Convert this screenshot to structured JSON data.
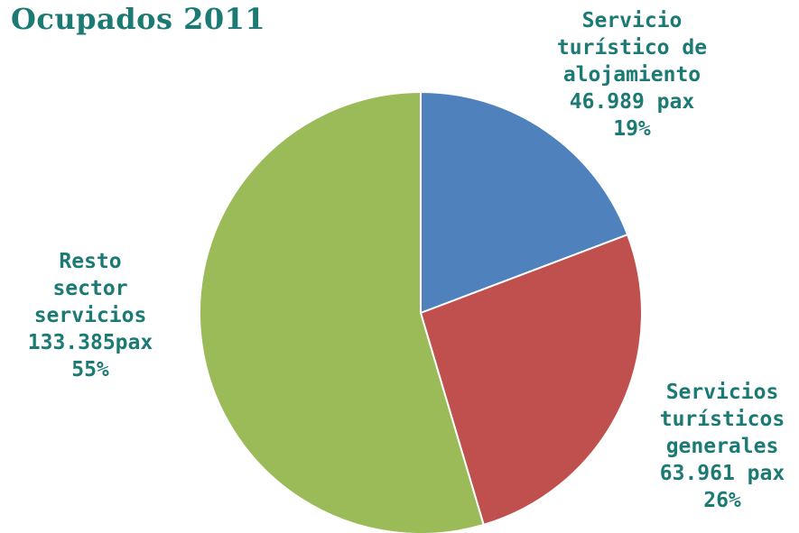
{
  "chart_data": {
    "type": "pie",
    "title": "Ocupados 2011",
    "slices": [
      {
        "label_lines": [
          "Servicio",
          "turístico de",
          "alojamiento"
        ],
        "value_label": "46.989 pax",
        "value": 46989,
        "percent_label": "19%",
        "color": "#4f81bd"
      },
      {
        "label_lines": [
          "Servicios",
          "turísticos",
          "generales"
        ],
        "value_label": "63.961 pax",
        "value": 63961,
        "percent_label": "26%",
        "color": "#c0504d"
      },
      {
        "label_lines": [
          "Resto",
          "sector",
          "servicios"
        ],
        "value_label": "133.385pax",
        "value": 133385,
        "percent_label": "55%",
        "color": "#9bbb59"
      }
    ]
  }
}
